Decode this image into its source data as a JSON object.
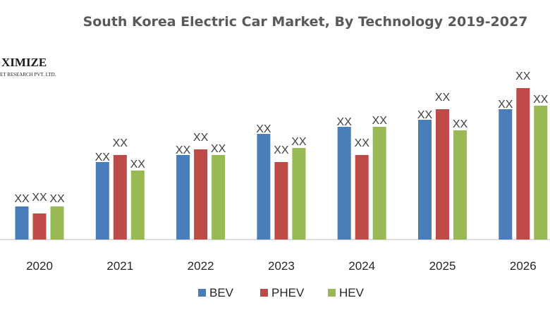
{
  "logo": {
    "main": "XIMIZE",
    "sub": "ET RESEARCH PVT. LTD."
  },
  "chart_data": {
    "type": "bar",
    "title": "South Korea Electric Car Market, By Technology 2019-2027",
    "xlabel": "",
    "ylabel": "",
    "categories": [
      "2020",
      "2021",
      "2022",
      "2023",
      "2024",
      "2025",
      "2026"
    ],
    "series": [
      {
        "name": "BEV",
        "color": "#4a7ebb",
        "values": [
          4.7,
          11.0,
          12.0,
          15.0,
          16.0,
          17.0,
          18.5
        ],
        "labels": [
          "XX",
          "XX",
          "XX",
          "XX",
          "XX",
          "XX",
          "XX"
        ]
      },
      {
        "name": "PHEV",
        "color": "#be4b48",
        "values": [
          3.7,
          12.0,
          12.8,
          11.0,
          12.0,
          18.5,
          21.5
        ],
        "labels": [
          "XX",
          "XX",
          "XX",
          "XX",
          "XX",
          "XX",
          "XX"
        ]
      },
      {
        "name": "HEV",
        "color": "#98b954",
        "values": [
          4.7,
          9.8,
          12.0,
          13.0,
          16.0,
          15.5,
          19.0
        ],
        "labels": [
          "XX",
          "XX",
          "XX",
          "XX",
          "XX",
          "XX",
          "XX"
        ]
      }
    ],
    "ylim": [
      0,
      25
    ],
    "grid": false,
    "legend_placement": "bottom-center"
  }
}
